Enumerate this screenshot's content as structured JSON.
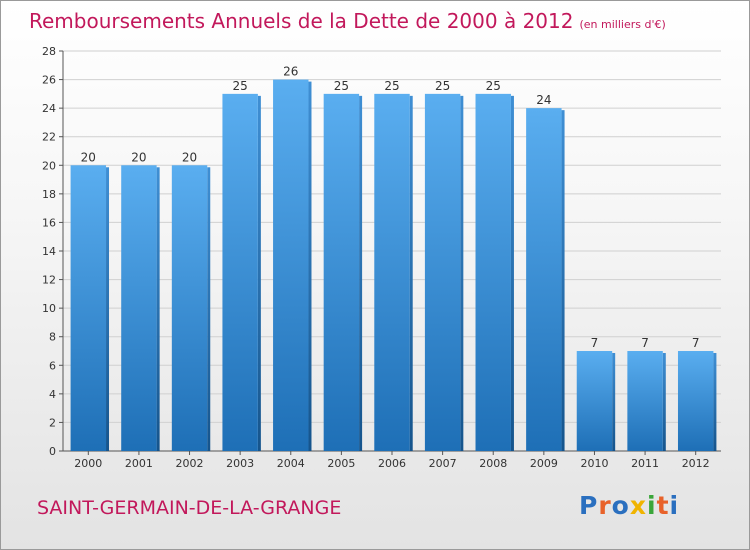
{
  "chart_data": {
    "type": "bar",
    "title": "Remboursements Annuels de la Dette de 2000 à 2012",
    "unit": "(en milliers d'€)",
    "categories": [
      "2000",
      "2001",
      "2002",
      "2003",
      "2004",
      "2005",
      "2006",
      "2007",
      "2008",
      "2009",
      "2010",
      "2011",
      "2012"
    ],
    "values": [
      20,
      20,
      20,
      25,
      26,
      25,
      25,
      25,
      25,
      24,
      7,
      7,
      7
    ],
    "ylim": [
      0,
      28
    ],
    "yticks": [
      0,
      2,
      4,
      6,
      8,
      10,
      12,
      14,
      16,
      18,
      20,
      22,
      24,
      26,
      28
    ],
    "grid": true,
    "legend": "none",
    "colors": {
      "bar_top": "#5aaef0",
      "bar_bottom": "#1e6fb6",
      "title": "#c2185b",
      "grid": "#d0d0d0"
    }
  },
  "footer": {
    "commune": "SAINT-GERMAIN-DE-LA-GRANGE",
    "brand_letters": [
      {
        "ch": "P",
        "color": "#2a6fbf"
      },
      {
        "ch": "r",
        "color": "#e8622a"
      },
      {
        "ch": "o",
        "color": "#2a6fbf"
      },
      {
        "ch": "x",
        "color": "#f0b400"
      },
      {
        "ch": "i",
        "color": "#3aa63a"
      },
      {
        "ch": "t",
        "color": "#e8622a"
      },
      {
        "ch": "i",
        "color": "#2a6fbf"
      }
    ]
  }
}
